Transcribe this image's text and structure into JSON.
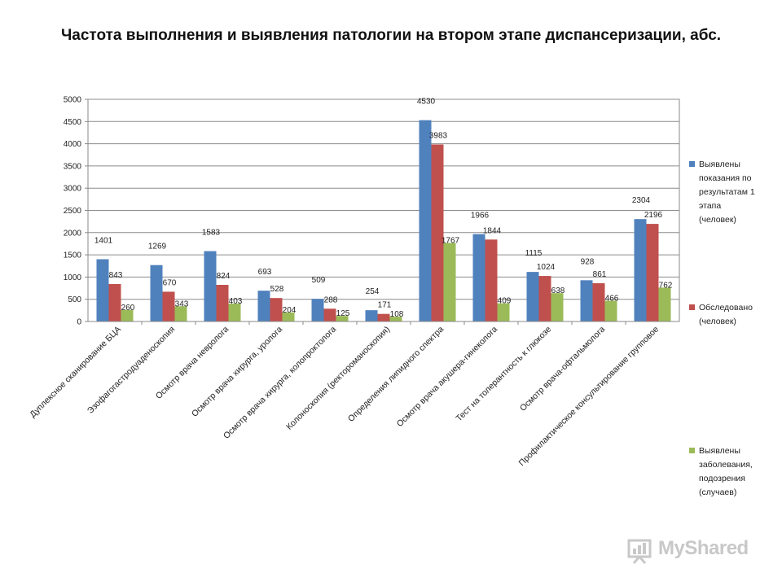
{
  "chart_data": {
    "type": "bar",
    "title": "Частота выполнения и выявления патологии на втором этапе диспансеризации, абс.",
    "categories": [
      "Дуплексное сканирование БЦА",
      "Эзофагогастродуаденоскопия",
      "Осмотр врача невролога",
      "Осмотр врача хирурга, уролога",
      "Осмотр врача хирурга, колопроктолога",
      "Колоноскопия (ректороманоскопия)",
      "Определения липидного спектра",
      "Осмотр врача акушера-гинеколога",
      "Тест на толерантность к глюкозе",
      "Осмотр врача-офтальмолога",
      "Профилактическое консультирование групповое"
    ],
    "series": [
      {
        "name": "Выявлены показания по результатам 1 этапа (человек)",
        "legend_lines": [
          "Выявлены",
          "показания по",
          "результатам 1",
          "этапа",
          "(человек)"
        ],
        "color": "#4f81bd",
        "values": [
          1401,
          1269,
          1583,
          693,
          509,
          254,
          4530,
          1966,
          1115,
          928,
          2304
        ]
      },
      {
        "name": "Обследовано (человек)",
        "legend_lines": [
          "Обследовано",
          "(человек)"
        ],
        "color": "#c0504d",
        "values": [
          843,
          670,
          824,
          528,
          288,
          171,
          3983,
          1844,
          1024,
          861,
          2196
        ]
      },
      {
        "name": "Выявлены заболевания, подозрения (случаев)",
        "legend_lines": [
          "Выявлены",
          "заболевания,",
          "подозрения",
          "(случаев)"
        ],
        "color": "#9bbb59",
        "values": [
          260,
          343,
          403,
          204,
          125,
          108,
          1767,
          409,
          638,
          466,
          762
        ]
      }
    ],
    "yticks": [
      0,
      500,
      1000,
      1500,
      2000,
      2500,
      3000,
      3500,
      4000,
      4500,
      5000
    ],
    "ylim": [
      0,
      5000
    ],
    "grid": true,
    "legend_position": "right",
    "xlabel": "",
    "ylabel": ""
  },
  "watermark": {
    "text": "MyShared",
    "icon": "presentation-board-icon"
  }
}
